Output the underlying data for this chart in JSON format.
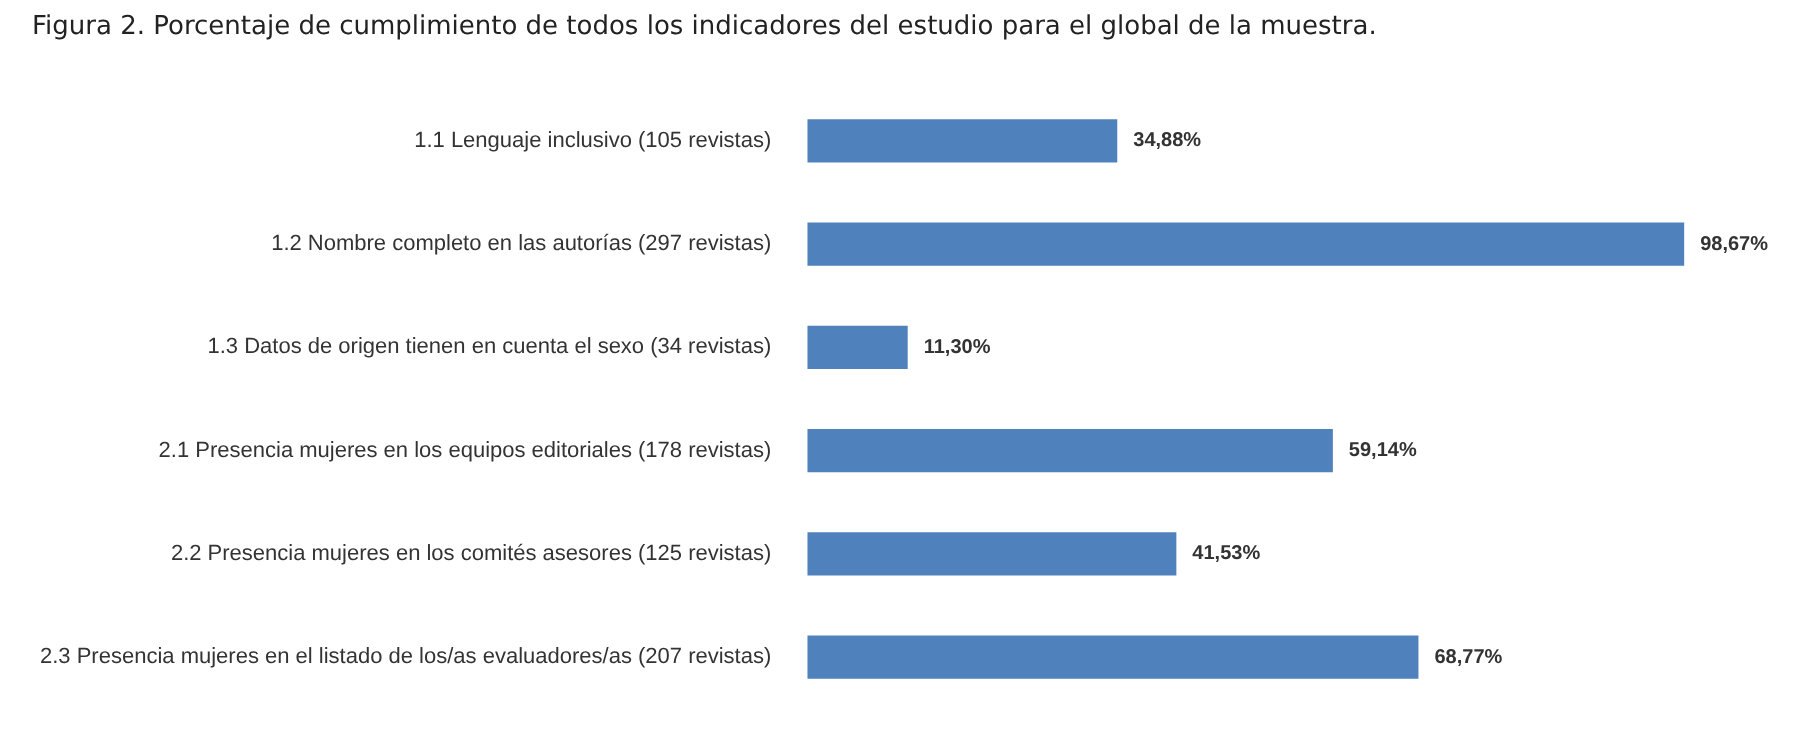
{
  "chart_data": {
    "type": "bar",
    "orientation": "horizontal",
    "title": "Figura 2. Porcentaje de cumplimiento de todos los indicadores del estudio para el global de la muestra.",
    "categories": [
      "1.1 Lenguaje inclusivo (105 revistas)",
      "1.2 Nombre completo en las autorías (297 revistas)",
      "1.3 Datos de origen tienen en cuenta el sexo (34 revistas)",
      "2.1 Presencia mujeres en los equipos editoriales (178 revistas)",
      "2.2 Presencia mujeres en los comités asesores (125 revistas)",
      "2.3 Presencia mujeres en el listado de los/as evaluadores/as (207 revistas)"
    ],
    "values": [
      34.88,
      98.67,
      11.3,
      59.14,
      41.53,
      68.77
    ],
    "value_labels": [
      "34,88%",
      "98,67%",
      "11,30%",
      "59,14%",
      "41,53%",
      "68,77%"
    ],
    "color": "#4f81bd"
  }
}
